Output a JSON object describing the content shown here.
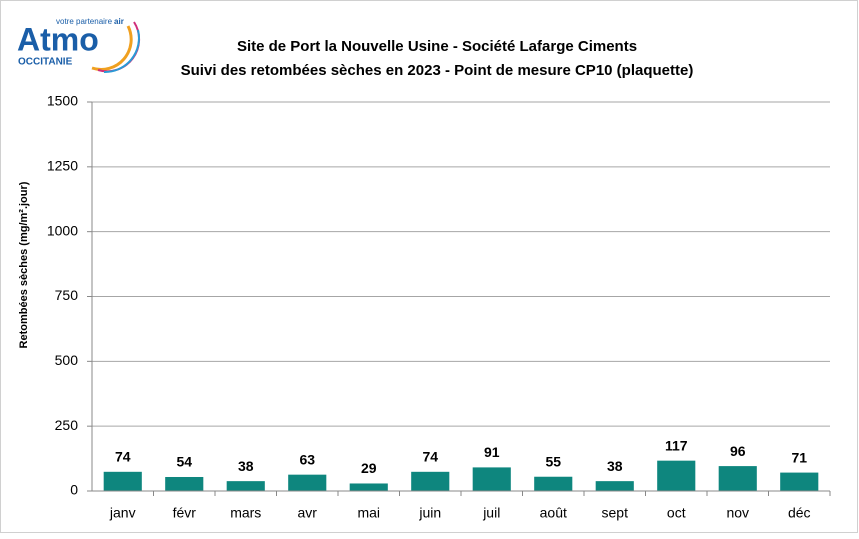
{
  "logo": {
    "name": "Atmo",
    "region": "OCCITANIE",
    "tagline": "votre partenaire",
    "tagline_bold": "air"
  },
  "chart_data": {
    "type": "bar",
    "title": "Site de Port la Nouvelle Usine - Société Lafarge Ciments",
    "subtitle": "Suivi des retombées sèches en 2023 - Point de mesure CP10 (plaquette)",
    "y_label": "Retombées sèches (mg/m².jour)",
    "categories": [
      "janv",
      "févr",
      "mars",
      "avr",
      "mai",
      "juin",
      "juil",
      "août",
      "sept",
      "oct",
      "nov",
      "déc"
    ],
    "values": [
      74,
      54,
      38,
      63,
      29,
      74,
      91,
      55,
      38,
      117,
      96,
      71
    ],
    "color": "#0e867e",
    "ylim": [
      0,
      1500
    ],
    "yticks": [
      0,
      250,
      500,
      750,
      1000,
      1250,
      1500
    ],
    "grid": true
  }
}
